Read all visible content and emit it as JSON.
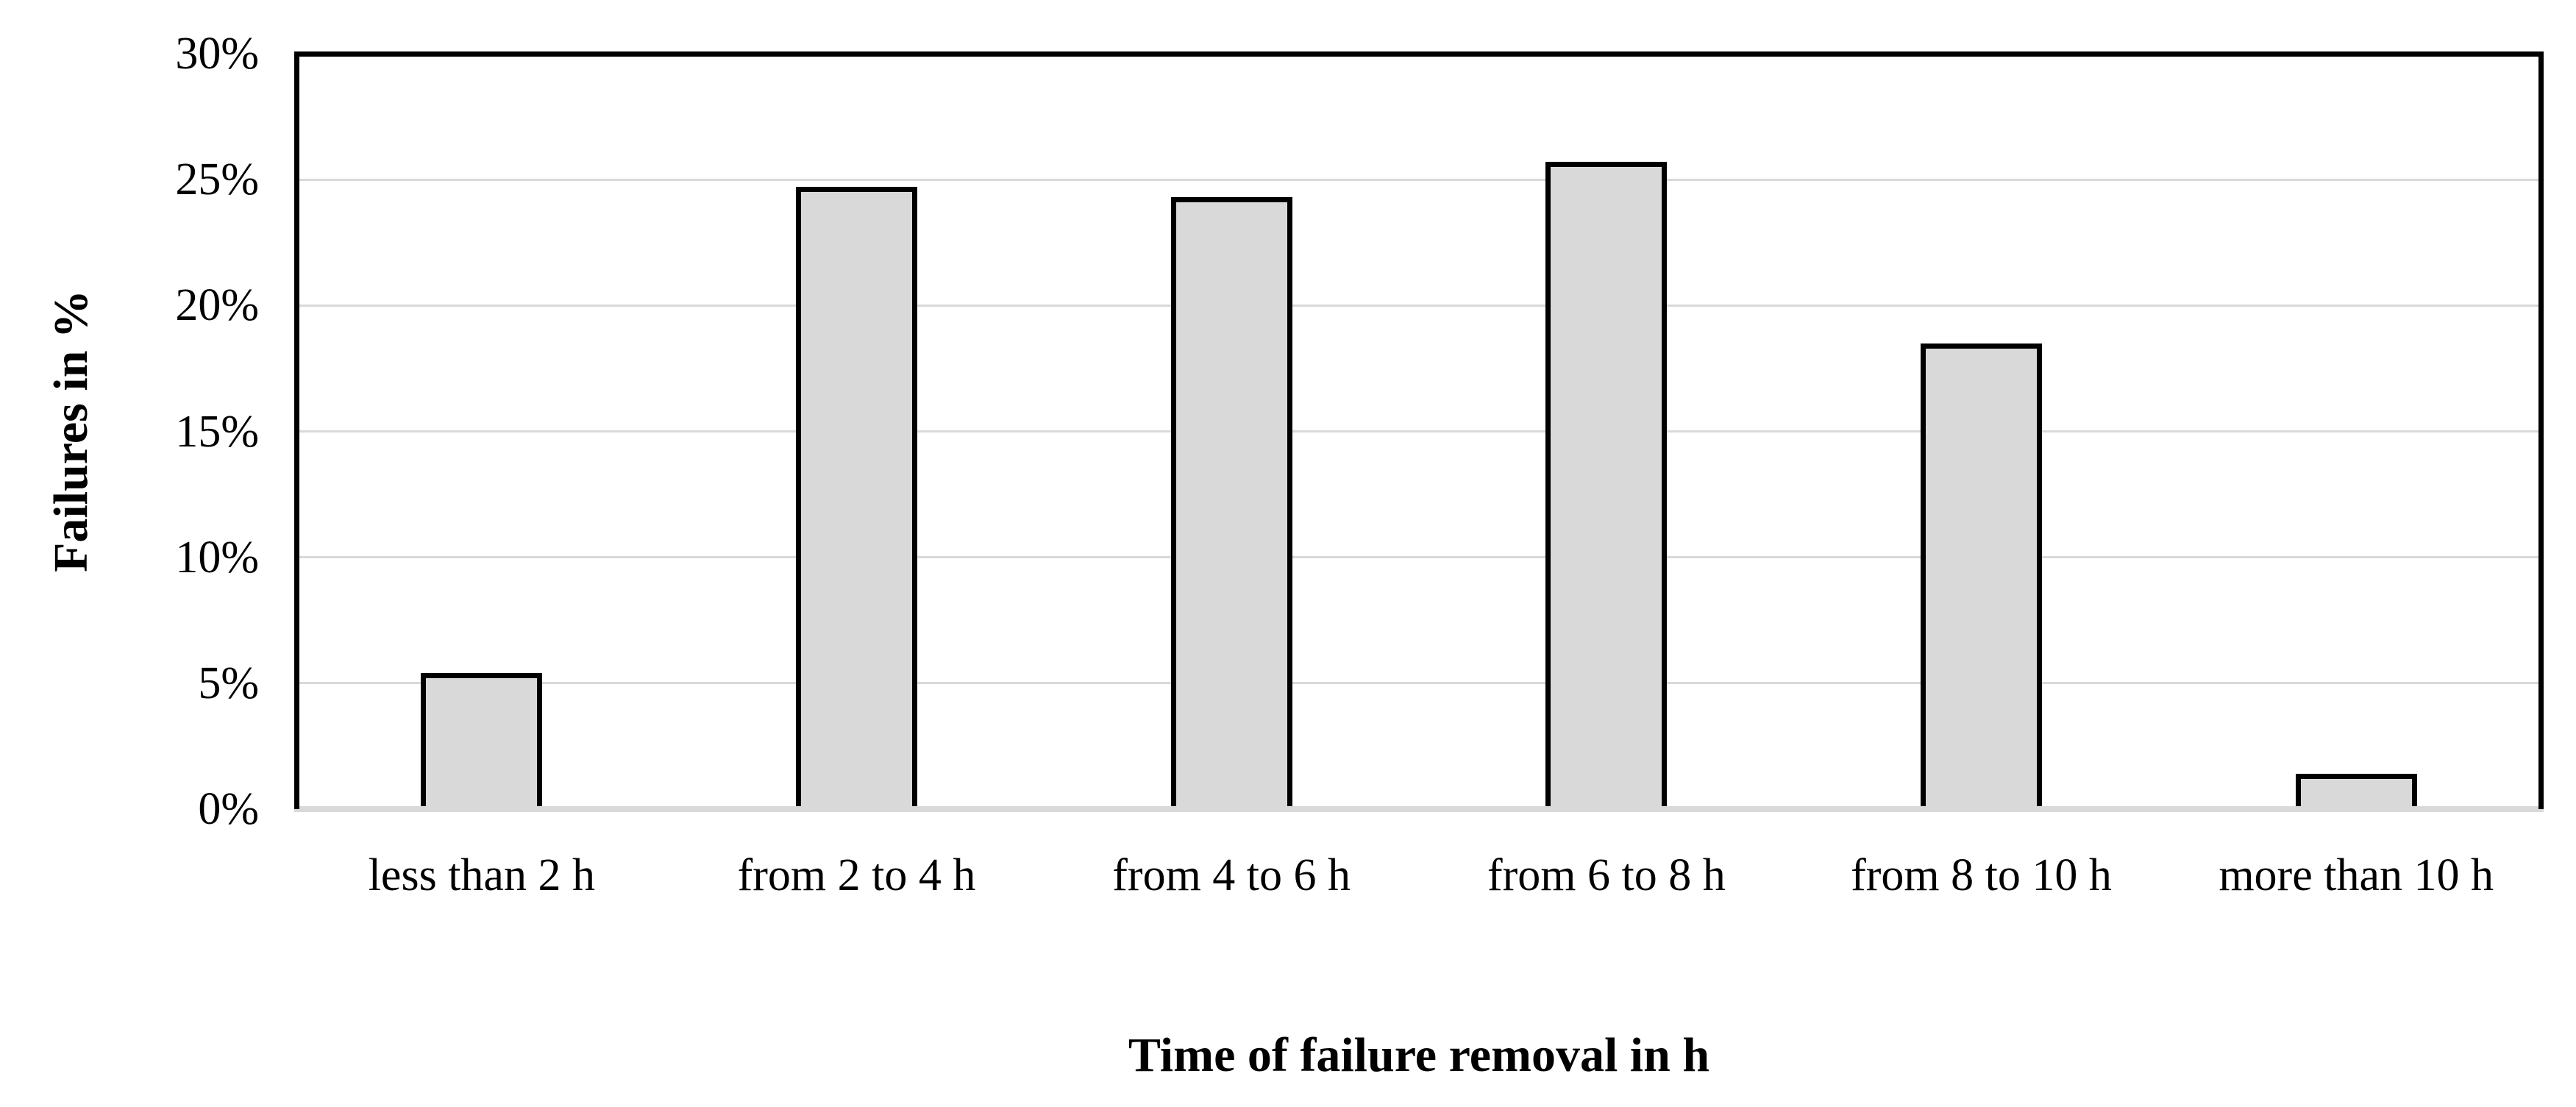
{
  "chart_data": {
    "type": "bar",
    "categories": [
      "less than 2 h",
      "from 2 to 4 h",
      "from 4 to 6 h",
      "from 6 to 8 h",
      "from 8 to 10 h",
      "more than 10 h"
    ],
    "values": [
      5.4,
      24.7,
      24.3,
      25.7,
      18.5,
      1.4
    ],
    "title": "",
    "xlabel": "Time of failure removal in h",
    "ylabel": "Failures in %",
    "ylim": [
      0,
      30
    ],
    "ytick_step": 5,
    "ytick_labels": [
      "0%",
      "5%",
      "10%",
      "15%",
      "20%",
      "25%",
      "30%"
    ],
    "grid": true,
    "legend": false,
    "colors": {
      "bar_fill": "#d9d9d9",
      "bar_border": "#000000",
      "gridline": "#d9d9d9",
      "axis_line": "#d9d9d9",
      "plot_border": "#000000",
      "text": "#000000",
      "background": "#ffffff"
    }
  }
}
